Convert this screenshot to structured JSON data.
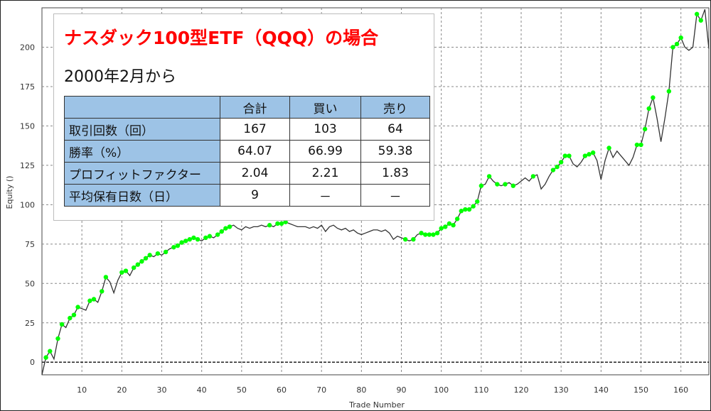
{
  "colors": {
    "line": "#333333",
    "marker": "#00ff00",
    "grid": "#888888",
    "title": "#ff0000",
    "table_header": "#9dc3e6"
  },
  "box": {
    "title": "ナスダック100型ETF（QQQ）の場合",
    "subtitle": "2000年2月から",
    "columns": [
      "",
      "合計",
      "買い",
      "売り"
    ],
    "rows": [
      {
        "label": "取引回数（回）",
        "total": "167",
        "buy": "103",
        "sell": "64"
      },
      {
        "label": "勝率（%）",
        "total": "64.07",
        "buy": "66.99",
        "sell": "59.38"
      },
      {
        "label": "プロフィットファクター",
        "total": "2.04",
        "buy": "2.21",
        "sell": "1.83"
      },
      {
        "label": "平均保有日数（日）",
        "total": "9",
        "buy": "－",
        "sell": "－"
      }
    ]
  },
  "chart_data": {
    "type": "line",
    "xlabel": "Trade Number",
    "ylabel": "Equity ()",
    "xlim": [
      0,
      167
    ],
    "ylim": [
      -8,
      225
    ],
    "x_ticks": [
      10,
      20,
      30,
      40,
      50,
      60,
      70,
      80,
      90,
      100,
      110,
      120,
      130,
      140,
      150,
      160
    ],
    "y_ticks": [
      0,
      25,
      50,
      75,
      100,
      125,
      150,
      175,
      200
    ],
    "grid": true,
    "zero_line": true,
    "series": [
      {
        "x": [
          0,
          1,
          2,
          3,
          4,
          5,
          6,
          7,
          8,
          9,
          10,
          11,
          12,
          13,
          14,
          15,
          16,
          17,
          18,
          19,
          20,
          21,
          22,
          23,
          24,
          25,
          26,
          27,
          28,
          29,
          30,
          31,
          32,
          33,
          34,
          35,
          36,
          37,
          38,
          39,
          40,
          41,
          42,
          43,
          44,
          45,
          46,
          47,
          48,
          49,
          50,
          51,
          52,
          53,
          54,
          55,
          56,
          57,
          58,
          59,
          60,
          61,
          62,
          63,
          64,
          65,
          66,
          67,
          68,
          69,
          70,
          71,
          72,
          73,
          74,
          75,
          76,
          77,
          78,
          79,
          80,
          81,
          82,
          83,
          84,
          85,
          86,
          87,
          88,
          89,
          90,
          91,
          92,
          93,
          94,
          95,
          96,
          97,
          98,
          99,
          100,
          101,
          102,
          103,
          104,
          105,
          106,
          107,
          108,
          109,
          110,
          111,
          112,
          113,
          114,
          115,
          116,
          117,
          118,
          119,
          120,
          121,
          122,
          123,
          124,
          125,
          126,
          127,
          128,
          129,
          130,
          131,
          132,
          133,
          134,
          135,
          136,
          137,
          138,
          139,
          140,
          141,
          142,
          143,
          144,
          145,
          146,
          147,
          148,
          149,
          150,
          151,
          152,
          153,
          154,
          155,
          156,
          157,
          158,
          159,
          160,
          161,
          162,
          163,
          164,
          165,
          166,
          167
        ],
        "values": [
          -8,
          3,
          7,
          2,
          15,
          24,
          22,
          28,
          30,
          35,
          34,
          33,
          39,
          40,
          38,
          45,
          54,
          51,
          44,
          52,
          57,
          58,
          55,
          60,
          62,
          64,
          66,
          68,
          67,
          69,
          68,
          70,
          72,
          73,
          74,
          76,
          77,
          78,
          79,
          78,
          77,
          79,
          80,
          79,
          81,
          83,
          85,
          86,
          87,
          85,
          84,
          86,
          85,
          86,
          86,
          87,
          86,
          87,
          86,
          88,
          88,
          89,
          88,
          87,
          86,
          86,
          86,
          85,
          86,
          85,
          87,
          83,
          86,
          87,
          85,
          84,
          85,
          83,
          84,
          82,
          81,
          82,
          83,
          84,
          84,
          83,
          84,
          82,
          78,
          80,
          79,
          78,
          77,
          78,
          81,
          82,
          81,
          81,
          81,
          82,
          85,
          86,
          88,
          87,
          91,
          96,
          97,
          97,
          99,
          102,
          112,
          113,
          118,
          115,
          113,
          112,
          113,
          114,
          112,
          113,
          115,
          117,
          115,
          118,
          119,
          110,
          113,
          118,
          122,
          124,
          127,
          131,
          131,
          126,
          124,
          127,
          131,
          132,
          133,
          128,
          116,
          128,
          136,
          130,
          134,
          131,
          128,
          125,
          130,
          138,
          138,
          148,
          161,
          168,
          155,
          140,
          155,
          172,
          200,
          202,
          206,
          200,
          198,
          200,
          221,
          217,
          224,
          199
        ]
      }
    ],
    "highlighted_points": [
      1,
      2,
      4,
      5,
      7,
      8,
      9,
      12,
      13,
      15,
      16,
      20,
      21,
      23,
      24,
      25,
      26,
      27,
      29,
      31,
      33,
      34,
      35,
      36,
      37,
      38,
      39,
      41,
      42,
      44,
      45,
      46,
      47,
      57,
      59,
      60,
      61,
      91,
      93,
      95,
      96,
      97,
      98,
      99,
      100,
      101,
      102,
      103,
      104,
      105,
      106,
      107,
      108,
      109,
      110,
      112,
      114,
      116,
      118,
      123,
      128,
      129,
      130,
      131,
      132,
      136,
      137,
      138,
      142,
      149,
      150,
      151,
      152,
      153,
      157,
      158,
      159,
      160,
      164,
      165
    ]
  }
}
